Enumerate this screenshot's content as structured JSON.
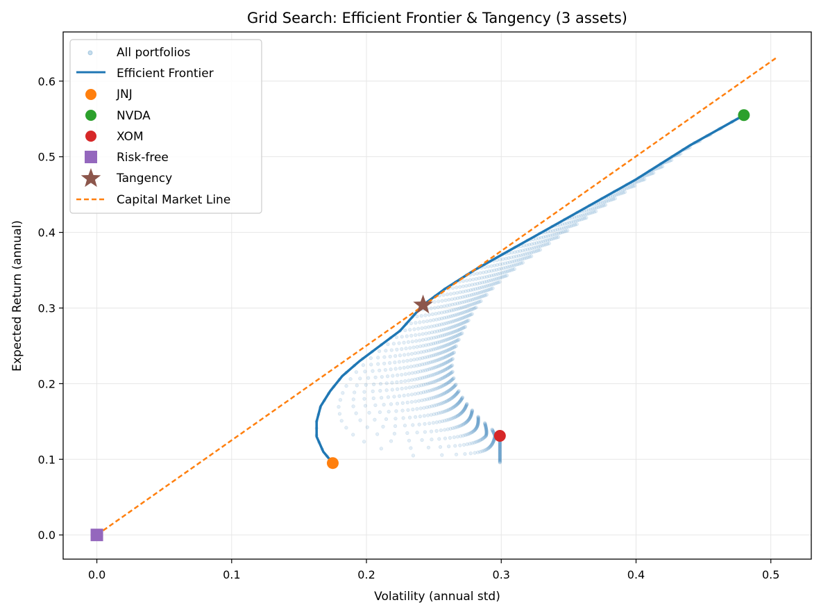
{
  "chart_data": {
    "type": "scatter",
    "title": "Grid Search: Efficient Frontier & Tangency (3 assets)",
    "xlabel": "Volatility (annual std)",
    "ylabel": "Expected Return (annual)",
    "xlim": [
      -0.025,
      0.53
    ],
    "ylim": [
      -0.032,
      0.665
    ],
    "xticks": [
      0.0,
      0.1,
      0.2,
      0.3,
      0.4,
      0.5
    ],
    "yticks": [
      0.0,
      0.1,
      0.2,
      0.3,
      0.4,
      0.5,
      0.6
    ],
    "grid": true,
    "legend_position": "top-left",
    "assets": [
      {
        "name": "JNJ",
        "vol": 0.175,
        "ret": 0.095,
        "color": "#ff7f0e"
      },
      {
        "name": "NVDA",
        "vol": 0.48,
        "ret": 0.555,
        "color": "#2ca02c"
      },
      {
        "name": "XOM",
        "vol": 0.299,
        "ret": 0.131,
        "color": "#d62728"
      }
    ],
    "risk_free": {
      "name": "Risk-free",
      "vol": 0.0,
      "ret": 0.0,
      "color": "#9467bd"
    },
    "tangency": {
      "name": "Tangency",
      "vol": 0.242,
      "ret": 0.304,
      "color": "#8c564b"
    },
    "cml": {
      "name": "Capital Market Line",
      "x": [
        0.0,
        0.505
      ],
      "y": [
        0.0,
        0.632
      ],
      "color": "#ff7f0e"
    },
    "efficient_frontier": {
      "name": "Efficient Frontier",
      "color": "#1f77b4",
      "points": [
        [
          0.175,
          0.095
        ],
        [
          0.168,
          0.11
        ],
        [
          0.163,
          0.13
        ],
        [
          0.163,
          0.15
        ],
        [
          0.166,
          0.17
        ],
        [
          0.173,
          0.19
        ],
        [
          0.182,
          0.21
        ],
        [
          0.195,
          0.23
        ],
        [
          0.21,
          0.25
        ],
        [
          0.225,
          0.27
        ],
        [
          0.242,
          0.304
        ],
        [
          0.258,
          0.325
        ],
        [
          0.28,
          0.35
        ],
        [
          0.3,
          0.37
        ],
        [
          0.33,
          0.4
        ],
        [
          0.36,
          0.43
        ],
        [
          0.4,
          0.47
        ],
        [
          0.44,
          0.515
        ],
        [
          0.48,
          0.555
        ]
      ]
    },
    "all_portfolios": {
      "name": "All portfolios",
      "color": "#1f77b4",
      "grid_steps": 50,
      "description_boundary": "weights on 3-asset simplex"
    },
    "legend": [
      "All portfolios",
      "Efficient Frontier",
      "JNJ",
      "NVDA",
      "XOM",
      "Risk-free",
      "Tangency",
      "Capital Market Line"
    ]
  }
}
